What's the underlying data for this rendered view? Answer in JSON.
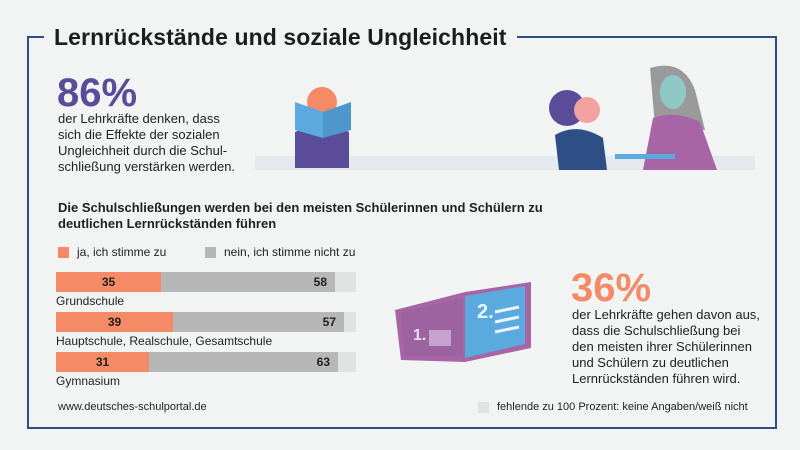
{
  "title": "Lernrückstände und soziale Ungleichheit",
  "stat1": {
    "value": "86%",
    "text": [
      "der Lehrkräfte denken, dass",
      "sich die Effekte der sozialen",
      "Ungleichheit durch die Schul-",
      "schließung verstärken werden."
    ]
  },
  "stat2": {
    "value": "36%",
    "text": [
      "der Lehrkräfte gehen davon aus,",
      "dass die Schulschließung bei",
      "den meisten ihrer Schülerinnen",
      "und Schülern zu deutlichen",
      "Lernrückständen führen wird."
    ]
  },
  "colors": {
    "yes": "#f58a66",
    "no": "#b7b7b7",
    "na": "#e1e2e2",
    "accent1": "#5b4c9a",
    "accent2": "#f58a66",
    "frame": "#2d4f86"
  },
  "chart_data": {
    "type": "bar",
    "orientation": "horizontal-stacked",
    "title": "Die Schulschließungen werden bei den meisten Schülerinnen und Schülern zu deutlichen Lernrückständen führen",
    "categories": [
      "Grundschule",
      "Hauptschule, Realschule, Gesamtschule",
      "Gymnasium"
    ],
    "series": [
      {
        "name": "ja, ich stimme zu",
        "values": [
          35,
          39,
          31
        ]
      },
      {
        "name": "nein, ich stimme nicht zu",
        "values": [
          58,
          57,
          63
        ]
      }
    ],
    "remainder_label": "fehlende zu 100 Prozent: keine Angaben/weiß nicht",
    "xlim": [
      0,
      100
    ]
  },
  "footer": {
    "source": "www.deutsches-schulportal.de"
  }
}
